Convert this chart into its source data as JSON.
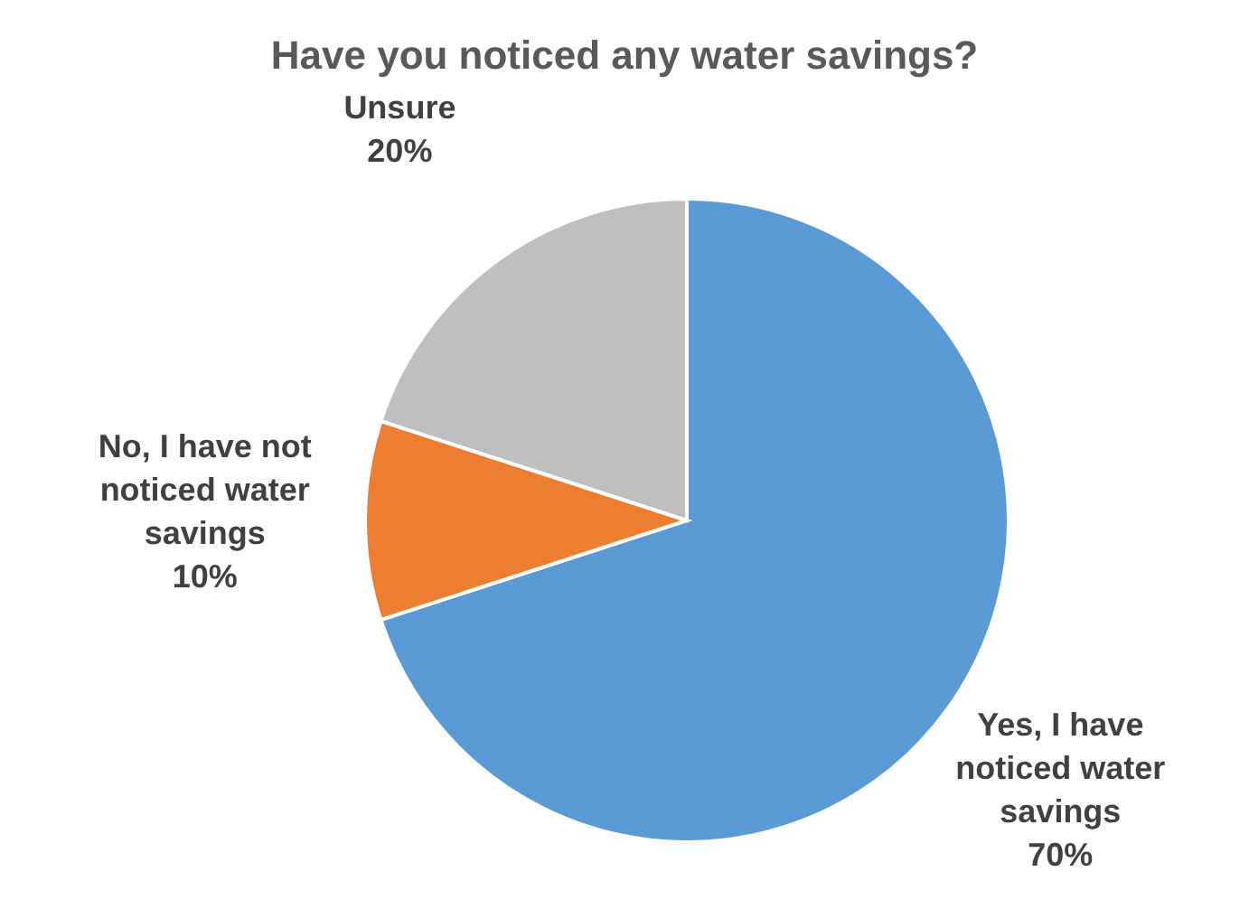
{
  "chart_data": {
    "type": "pie",
    "title": "Have you noticed any water savings?",
    "categories": [
      "Yes, I have noticed water savings",
      "No, I have not noticed water savings",
      "Unsure"
    ],
    "values": [
      70,
      10,
      20
    ],
    "colors": [
      "#5b9bd5",
      "#ed7d31",
      "#bfbfbf"
    ],
    "value_labels": [
      "70%",
      "10%",
      "20%"
    ]
  }
}
